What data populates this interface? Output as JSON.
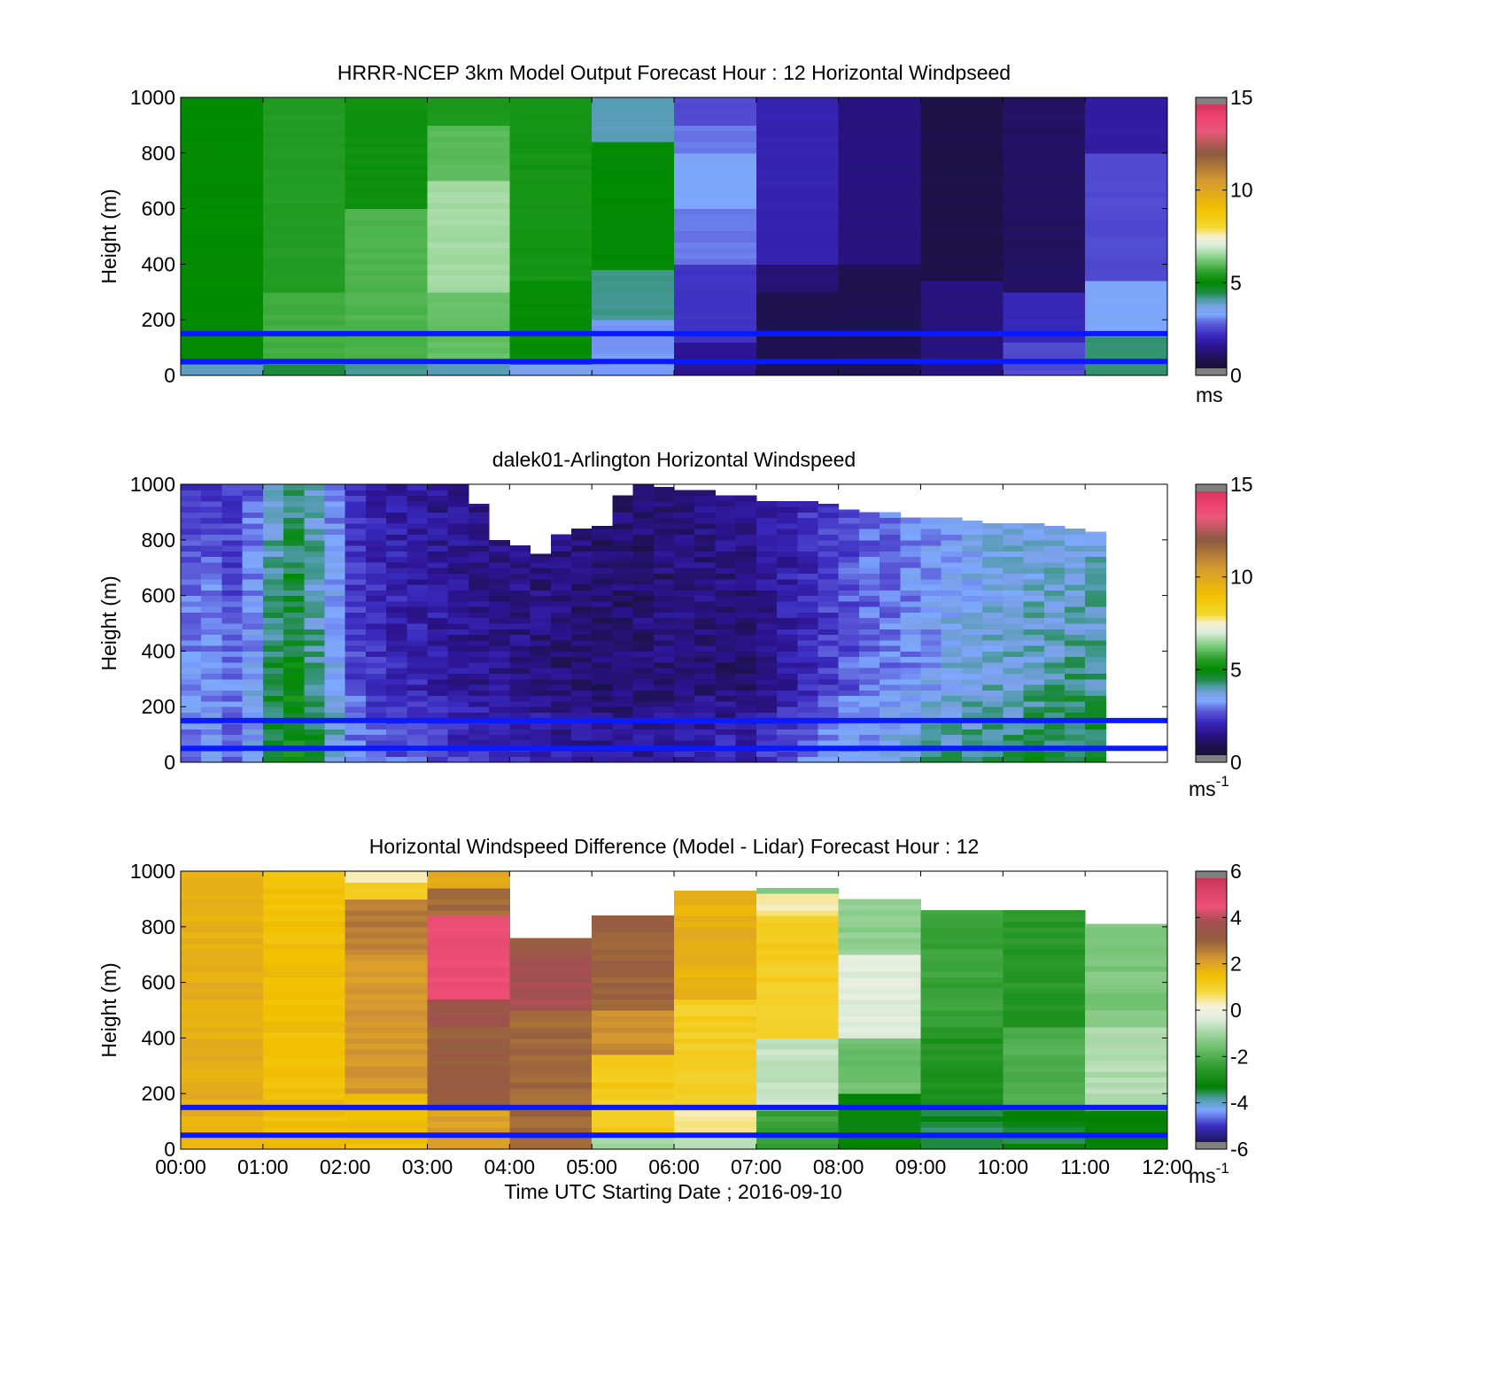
{
  "chart_data": [
    {
      "type": "heatmap",
      "title": "HRRR-NCEP 3km Model Output   Forecast Hour : 12 Horizontal Windpseed",
      "ylabel": "Height (m)",
      "xlabel": "",
      "x_range_hours": [
        0,
        12
      ],
      "ylim": [
        0,
        1000
      ],
      "yticks": [
        "0",
        "200",
        "400",
        "600",
        "800",
        "1000"
      ],
      "x_tick_labels_shown": false,
      "colorbar": {
        "min": 0,
        "max": 15,
        "ticks": [
          "0",
          "5",
          "10",
          "15"
        ],
        "unit_label": "ms",
        "unit_superscript": "",
        "palette": "speed"
      },
      "reference_lines_m": [
        50,
        150
      ],
      "reference_line_color": "#0a1aff",
      "grid": [
        {
          "x_start": 0,
          "x_end": 1,
          "levels": [
            {
              "y0": 0,
              "y1": 40,
              "v": 4
            },
            {
              "y0": 40,
              "y1": 1000,
              "v": 5.0
            }
          ]
        },
        {
          "x_start": 1,
          "x_end": 2,
          "levels": [
            {
              "y0": 0,
              "y1": 40,
              "v": 4.5
            },
            {
              "y0": 40,
              "y1": 300,
              "v": 5.8
            },
            {
              "y0": 300,
              "y1": 1000,
              "v": 5.5
            }
          ]
        },
        {
          "x_start": 2,
          "x_end": 3,
          "levels": [
            {
              "y0": 0,
              "y1": 40,
              "v": 4.2
            },
            {
              "y0": 40,
              "y1": 600,
              "v": 5.9
            },
            {
              "y0": 600,
              "y1": 1000,
              "v": 5.2
            }
          ]
        },
        {
          "x_start": 3,
          "x_end": 4,
          "levels": [
            {
              "y0": 0,
              "y1": 40,
              "v": 4
            },
            {
              "y0": 40,
              "y1": 300,
              "v": 6.1
            },
            {
              "y0": 300,
              "y1": 700,
              "v": 6.6
            },
            {
              "y0": 700,
              "y1": 900,
              "v": 6.0
            },
            {
              "y0": 900,
              "y1": 1000,
              "v": 5.4
            }
          ]
        },
        {
          "x_start": 4,
          "x_end": 5,
          "levels": [
            {
              "y0": 0,
              "y1": 40,
              "v": 3.6
            },
            {
              "y0": 40,
              "y1": 350,
              "v": 5.1
            },
            {
              "y0": 350,
              "y1": 1000,
              "v": 5.3
            }
          ]
        },
        {
          "x_start": 5,
          "x_end": 6,
          "levels": [
            {
              "y0": 0,
              "y1": 200,
              "v": 3.2
            },
            {
              "y0": 200,
              "y1": 380,
              "v": 4.2
            },
            {
              "y0": 380,
              "y1": 850,
              "v": 5.0
            },
            {
              "y0": 850,
              "y1": 1000,
              "v": 4.0
            }
          ]
        },
        {
          "x_start": 6,
          "x_end": 7,
          "levels": [
            {
              "y0": 0,
              "y1": 120,
              "v": 1.6
            },
            {
              "y0": 120,
              "y1": 400,
              "v": 2.3
            },
            {
              "y0": 400,
              "y1": 600,
              "v": 3.0
            },
            {
              "y0": 600,
              "y1": 800,
              "v": 3.4
            },
            {
              "y0": 800,
              "y1": 900,
              "v": 3.0
            },
            {
              "y0": 900,
              "y1": 1000,
              "v": 2.6
            }
          ]
        },
        {
          "x_start": 7,
          "x_end": 8,
          "levels": [
            {
              "y0": 0,
              "y1": 300,
              "v": 0.9
            },
            {
              "y0": 300,
              "y1": 400,
              "v": 1.3
            },
            {
              "y0": 400,
              "y1": 1000,
              "v": 2.0
            }
          ]
        },
        {
          "x_start": 8,
          "x_end": 9,
          "levels": [
            {
              "y0": 0,
              "y1": 400,
              "v": 0.9
            },
            {
              "y0": 400,
              "y1": 1000,
              "v": 1.4
            }
          ]
        },
        {
          "x_start": 9,
          "x_end": 10,
          "levels": [
            {
              "y0": 0,
              "y1": 350,
              "v": 1.4
            },
            {
              "y0": 350,
              "y1": 1000,
              "v": 0.8
            }
          ]
        },
        {
          "x_start": 10,
          "x_end": 11,
          "levels": [
            {
              "y0": 0,
              "y1": 120,
              "v": 2.6
            },
            {
              "y0": 120,
              "y1": 300,
              "v": 2.1
            },
            {
              "y0": 300,
              "y1": 1000,
              "v": 1.1
            }
          ]
        },
        {
          "x_start": 11,
          "x_end": 12,
          "levels": [
            {
              "y0": 0,
              "y1": 150,
              "v": 4.3
            },
            {
              "y0": 150,
              "y1": 350,
              "v": 3.4
            },
            {
              "y0": 350,
              "y1": 800,
              "v": 2.6
            },
            {
              "y0": 800,
              "y1": 1000,
              "v": 1.8
            }
          ]
        }
      ]
    },
    {
      "type": "heatmap",
      "title": "dalek01-Arlington  Horizontal Windspeed",
      "ylabel": "Height (m)",
      "xlabel": "",
      "x_range_hours": [
        0,
        12
      ],
      "ylim": [
        0,
        1000
      ],
      "yticks": [
        "0",
        "200",
        "400",
        "600",
        "800",
        "1000"
      ],
      "x_tick_labels_shown": false,
      "colorbar": {
        "min": 0,
        "max": 15,
        "ticks": [
          "0",
          "5",
          "10",
          "15"
        ],
        "unit_label": "ms",
        "unit_superscript": "-1",
        "palette": "speed"
      },
      "reference_lines_m": [
        50,
        150
      ],
      "reference_line_color": "#0a1aff",
      "profile_interval_minutes": 15,
      "top_of_data_m": [
        1000,
        1000,
        1000,
        1000,
        1000,
        1000,
        1000,
        1000,
        1000,
        1000,
        1000,
        1000,
        1000,
        1000,
        930,
        800,
        780,
        750,
        820,
        840,
        850,
        960,
        1000,
        990,
        980,
        980,
        960,
        960,
        940,
        940,
        940,
        930,
        910,
        900,
        900,
        880,
        880,
        880,
        870,
        860,
        860,
        860,
        850,
        840,
        830
      ],
      "speed_near_ground_ms": [
        3.2,
        3.3,
        3.0,
        3.5,
        4.8,
        5.2,
        4.6,
        4.0,
        3.3,
        3.0,
        2.8,
        2.8,
        2.6,
        2.4,
        2.3,
        2.2,
        2.1,
        2.0,
        1.9,
        1.8,
        1.7,
        1.8,
        1.8,
        1.9,
        2.0,
        2.1,
        2.2,
        2.2,
        2.4,
        2.7,
        3.0,
        3.2,
        3.5,
        3.6,
        3.8,
        4.0,
        4.1,
        4.2,
        4.3,
        4.4,
        4.5,
        4.6,
        4.6,
        4.7,
        4.7
      ],
      "speed_mid_level_ms": [
        3.1,
        3.3,
        2.9,
        3.4,
        4.5,
        4.9,
        4.2,
        3.6,
        2.6,
        2.3,
        2.1,
        2.0,
        1.9,
        1.7,
        1.6,
        1.5,
        1.5,
        1.4,
        1.3,
        1.3,
        1.2,
        1.2,
        1.3,
        1.3,
        1.4,
        1.3,
        1.2,
        1.1,
        1.4,
        1.8,
        2.1,
        2.4,
        2.7,
        2.9,
        3.0,
        3.2,
        3.4,
        3.6,
        3.7,
        3.8,
        3.9,
        4.0,
        4.1,
        4.2,
        4.2
      ],
      "speed_upper_level_ms": [
        2.4,
        2.5,
        2.3,
        2.8,
        3.8,
        4.2,
        3.9,
        3.0,
        2.1,
        1.9,
        1.8,
        1.7,
        1.6,
        1.5,
        1.5,
        1.5,
        1.4,
        1.4,
        1.4,
        1.3,
        1.3,
        1.3,
        1.2,
        1.3,
        1.4,
        1.5,
        1.6,
        1.7,
        1.8,
        2.0,
        2.2,
        2.4,
        2.6,
        2.8,
        3.0,
        3.1,
        3.2,
        3.3,
        3.4,
        3.4,
        3.5,
        3.5,
        3.5,
        3.6,
        3.6
      ]
    },
    {
      "type": "heatmap",
      "title": "Horizontal Windspeed Difference (Model - Lidar) Forecast Hour : 12",
      "ylabel": "Height (m)",
      "xlabel": "Time UTC  Starting Date ; 2016-09-10",
      "x_range_hours": [
        0,
        12
      ],
      "xticks": [
        "00:00",
        "01:00",
        "02:00",
        "03:00",
        "04:00",
        "05:00",
        "06:00",
        "07:00",
        "08:00",
        "09:00",
        "10:00",
        "11:00",
        "12:00"
      ],
      "ylim": [
        0,
        1000
      ],
      "yticks": [
        "0",
        "200",
        "400",
        "600",
        "800",
        "1000"
      ],
      "colorbar": {
        "min": -6,
        "max": 6,
        "ticks": [
          "-6",
          "-4",
          "-2",
          "0",
          "2",
          "4",
          "6"
        ],
        "unit_label": "ms",
        "unit_superscript": "-1",
        "palette": "diff"
      },
      "reference_lines_m": [
        50,
        150
      ],
      "reference_line_color": "#0a1aff",
      "grid": [
        {
          "x_start": 0,
          "x_end": 1,
          "top_m": 1000,
          "levels": [
            {
              "y0": 0,
              "y1": 1000,
              "v": 1.8
            }
          ]
        },
        {
          "x_start": 1,
          "x_end": 2,
          "top_m": 1000,
          "levels": [
            {
              "y0": 0,
              "y1": 1000,
              "v": 1.5
            }
          ]
        },
        {
          "x_start": 2,
          "x_end": 3,
          "top_m": 1000,
          "levels": [
            {
              "y0": 0,
              "y1": 200,
              "v": 1.6
            },
            {
              "y0": 200,
              "y1": 700,
              "v": 2.2
            },
            {
              "y0": 700,
              "y1": 900,
              "v": 2.6
            },
            {
              "y0": 900,
              "y1": 960,
              "v": 1.2
            },
            {
              "y0": 960,
              "y1": 1000,
              "v": 0.2
            }
          ]
        },
        {
          "x_start": 3,
          "x_end": 4,
          "top_m": 1000,
          "levels": [
            {
              "y0": 0,
              "y1": 150,
              "v": 2.1
            },
            {
              "y0": 150,
              "y1": 450,
              "v": 3.1
            },
            {
              "y0": 450,
              "y1": 550,
              "v": 3.6
            },
            {
              "y0": 550,
              "y1": 850,
              "v": 4.6
            },
            {
              "y0": 850,
              "y1": 950,
              "v": 2.8
            },
            {
              "y0": 950,
              "y1": 1000,
              "v": 2.0
            }
          ]
        },
        {
          "x_start": 4,
          "x_end": 5,
          "top_m": 760,
          "levels": [
            {
              "y0": 0,
              "y1": 500,
              "v": 2.9
            },
            {
              "y0": 500,
              "y1": 700,
              "v": 3.8
            },
            {
              "y0": 700,
              "y1": 760,
              "v": 3.2
            }
          ]
        },
        {
          "x_start": 5,
          "x_end": 6,
          "top_m": 840,
          "levels": [
            {
              "y0": 0,
              "y1": 50,
              "v": -1.0
            },
            {
              "y0": 50,
              "y1": 350,
              "v": 1.2
            },
            {
              "y0": 350,
              "y1": 500,
              "v": 2.4
            },
            {
              "y0": 500,
              "y1": 840,
              "v": 3.0
            }
          ]
        },
        {
          "x_start": 6,
          "x_end": 7,
          "top_m": 930,
          "levels": [
            {
              "y0": 0,
              "y1": 50,
              "v": -0.8
            },
            {
              "y0": 50,
              "y1": 150,
              "v": 0.4
            },
            {
              "y0": 150,
              "y1": 550,
              "v": 1.1
            },
            {
              "y0": 550,
              "y1": 930,
              "v": 1.8
            }
          ]
        },
        {
          "x_start": 7,
          "x_end": 8,
          "top_m": 940,
          "levels": [
            {
              "y0": 0,
              "y1": 150,
              "v": -2.3
            },
            {
              "y0": 150,
              "y1": 400,
              "v": -0.6
            },
            {
              "y0": 400,
              "y1": 850,
              "v": 1.1
            },
            {
              "y0": 850,
              "y1": 920,
              "v": 0.4
            },
            {
              "y0": 920,
              "y1": 940,
              "v": -1.5
            }
          ]
        },
        {
          "x_start": 8,
          "x_end": 9,
          "top_m": 900,
          "levels": [
            {
              "y0": 0,
              "y1": 200,
              "v": -3.2
            },
            {
              "y0": 200,
              "y1": 400,
              "v": -1.6
            },
            {
              "y0": 400,
              "y1": 700,
              "v": -0.3
            },
            {
              "y0": 700,
              "y1": 900,
              "v": -1.2
            }
          ]
        },
        {
          "x_start": 9,
          "x_end": 10,
          "top_m": 860,
          "levels": [
            {
              "y0": 0,
              "y1": 150,
              "v": -3.5
            },
            {
              "y0": 150,
              "y1": 450,
              "v": -2.7
            },
            {
              "y0": 450,
              "y1": 860,
              "v": -2.3
            }
          ]
        },
        {
          "x_start": 10,
          "x_end": 11,
          "top_m": 860,
          "levels": [
            {
              "y0": 0,
              "y1": 150,
              "v": -3.4
            },
            {
              "y0": 150,
              "y1": 450,
              "v": -2.0
            },
            {
              "y0": 450,
              "y1": 860,
              "v": -2.6
            }
          ]
        },
        {
          "x_start": 11,
          "x_end": 12,
          "top_m": 810,
          "levels": [
            {
              "y0": 0,
              "y1": 150,
              "v": -3.3
            },
            {
              "y0": 150,
              "y1": 450,
              "v": -0.8
            },
            {
              "y0": 450,
              "y1": 810,
              "v": -1.4
            }
          ]
        }
      ]
    }
  ]
}
